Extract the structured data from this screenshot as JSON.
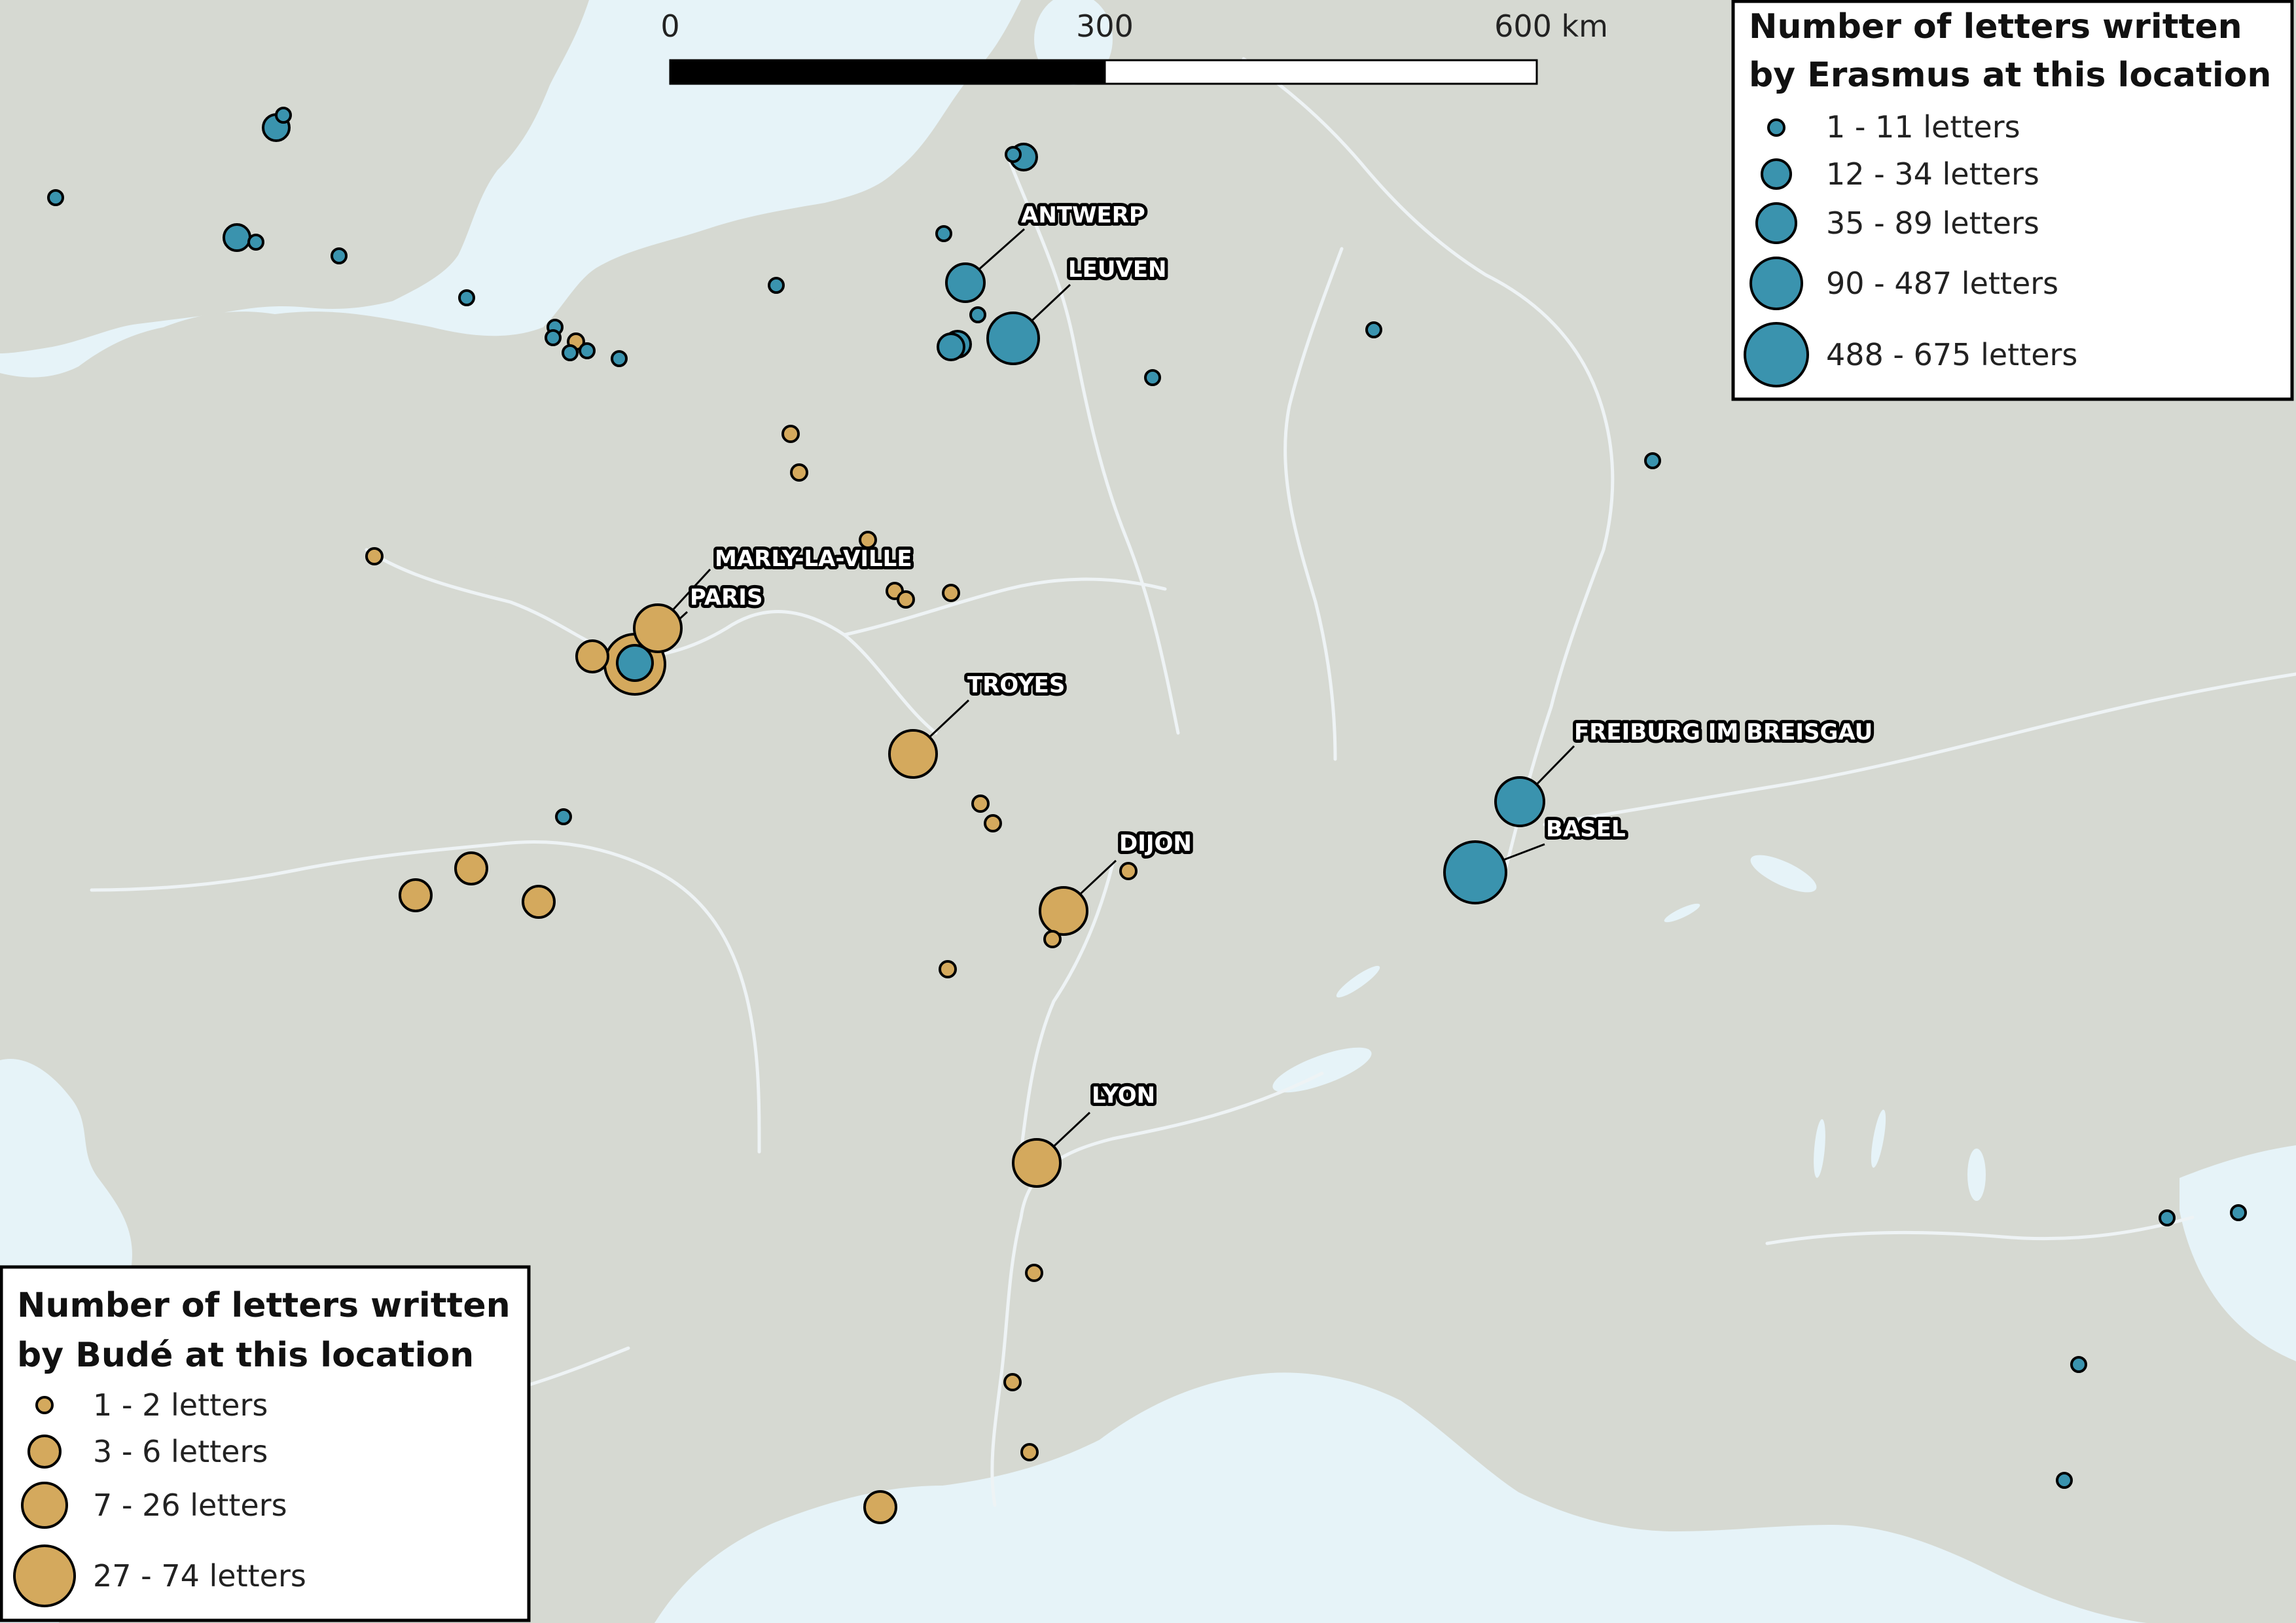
{
  "colors": {
    "land": "#d6d9d2",
    "water": "#e6f3f8",
    "river": "#eef3f5",
    "erasmus": "#3a93ae",
    "bude": "#d4a95d",
    "outline": "#000000"
  },
  "scale_bar": {
    "labels": [
      "0",
      "300",
      "600 km"
    ]
  },
  "legend_erasmus": {
    "title_line1": "Number of letters written",
    "title_line2": "by Erasmus at this location",
    "items": [
      {
        "label": "1 - 11 letters",
        "size_class": 1
      },
      {
        "label": "12 - 34 letters",
        "size_class": 2
      },
      {
        "label": "35 - 89 letters",
        "size_class": 3
      },
      {
        "label": "90 - 487 letters",
        "size_class": 4
      },
      {
        "label": "488 - 675 letters",
        "size_class": 5
      }
    ]
  },
  "legend_bude": {
    "title_line1": "Number of letters written",
    "title_line2": "by Budé at this location",
    "items": [
      {
        "label": "1 - 2 letters",
        "size_class": 1
      },
      {
        "label": "3 - 6 letters",
        "size_class": 2
      },
      {
        "label": "7 - 26 letters",
        "size_class": 3
      },
      {
        "label": "27 - 74 letters",
        "size_class": 4
      }
    ]
  },
  "city_labels": [
    "ANTWERP",
    "LEUVEN",
    "MARLY-LA-VILLE",
    "PARIS",
    "TROYES",
    "DIJON",
    "FREIBURG IM BREISGAU",
    "BASEL",
    "LYON"
  ]
}
